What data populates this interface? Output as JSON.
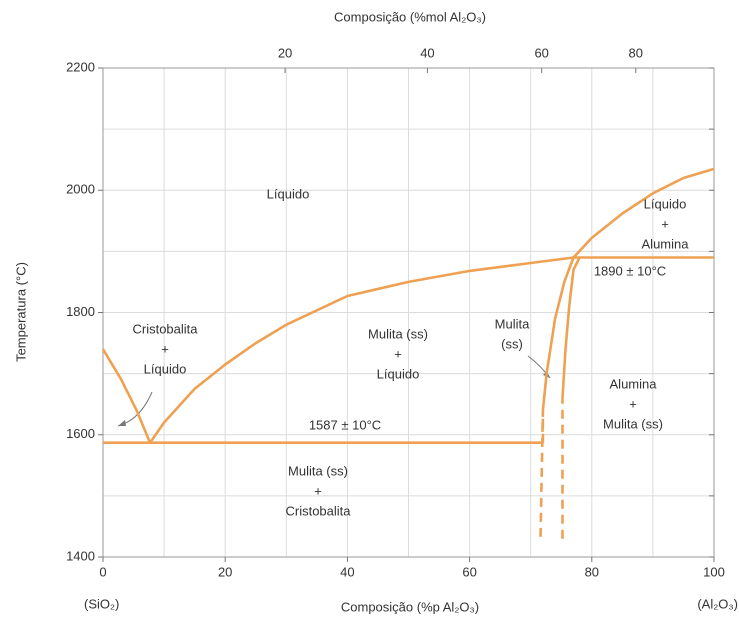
{
  "chart_data": {
    "type": "phase-diagram",
    "title": "Composição (%mol Al₂O₃)",
    "xlabel": "Composição (%p Al₂O₃)",
    "ylabel": "Temperatura (°C)",
    "x_end_labels": [
      "(SiO₂)",
      "(Al₂O₃)"
    ],
    "xlim": [
      0,
      100
    ],
    "ylim": [
      1400,
      2200
    ],
    "xticks": [
      0,
      20,
      40,
      60,
      80,
      100
    ],
    "yticks": [
      1400,
      1600,
      1800,
      2000,
      2200
    ],
    "xminorticks": [
      10,
      30,
      50,
      70,
      90
    ],
    "yminorticks": [
      1500,
      1700,
      1900,
      2100
    ],
    "x2ticks": [
      {
        "value": 29.8,
        "label": "20"
      },
      {
        "value": 53.1,
        "label": "40"
      },
      {
        "value": 71.8,
        "label": "60"
      },
      {
        "value": 87.2,
        "label": "80"
      }
    ],
    "grid": true,
    "color": "#eea152",
    "series": [
      {
        "x": [
          0,
          3,
          5.5,
          7.7
        ],
        "y": [
          1740,
          1690,
          1640,
          1587
        ]
      },
      {
        "x": [
          7.7,
          10,
          15,
          20,
          25,
          30,
          40,
          50,
          60,
          70,
          77
        ],
        "y": [
          1587,
          1620,
          1675,
          1715,
          1750,
          1780,
          1827,
          1850,
          1868,
          1881,
          1890
        ]
      },
      {
        "x": [
          0,
          72
        ],
        "y": [
          1587,
          1587
        ]
      },
      {
        "x": [
          77,
          100
        ],
        "y": [
          1890,
          1890
        ]
      },
      {
        "x": [
          77,
          80,
          85,
          90,
          95,
          100
        ],
        "y": [
          1890,
          1922,
          1962,
          1995,
          2020,
          2035
        ]
      },
      {
        "x": [
          72,
          72.6,
          74,
          75.5,
          77
        ],
        "y": [
          1640,
          1700,
          1790,
          1850,
          1890
        ]
      },
      {
        "x": [
          75.2,
          75.7,
          76.3,
          77,
          78
        ],
        "y": [
          1660,
          1740,
          1810,
          1870,
          1890
        ]
      },
      {
        "x": [
          72,
          72,
          71.6
        ],
        "y": [
          1587,
          1640,
          1430
        ],
        "style": "dashed"
      },
      {
        "x": [
          75.2,
          75.2
        ],
        "y": [
          1430,
          1660
        ],
        "style": "dashed"
      }
    ],
    "annotations": [
      {
        "lines": [
          "Líquido"
        ]
      },
      {
        "lines": [
          "Cristobalita",
          "+",
          "Líquido"
        ]
      },
      {
        "lines": [
          "Mulita (ss)",
          "+",
          "Líquido"
        ]
      },
      {
        "lines": [
          "Mulita",
          "(ss)"
        ]
      },
      {
        "lines": [
          "Líquido",
          "+",
          "Alumina"
        ]
      },
      {
        "lines": [
          "1890 ± 10°C"
        ]
      },
      {
        "lines": [
          "1587 ± 10°C"
        ]
      },
      {
        "lines": [
          "Alumina",
          "+",
          "Mulita (ss)"
        ]
      },
      {
        "lines": [
          "Mulita (ss)",
          "+",
          "Cristobalita"
        ]
      }
    ]
  }
}
